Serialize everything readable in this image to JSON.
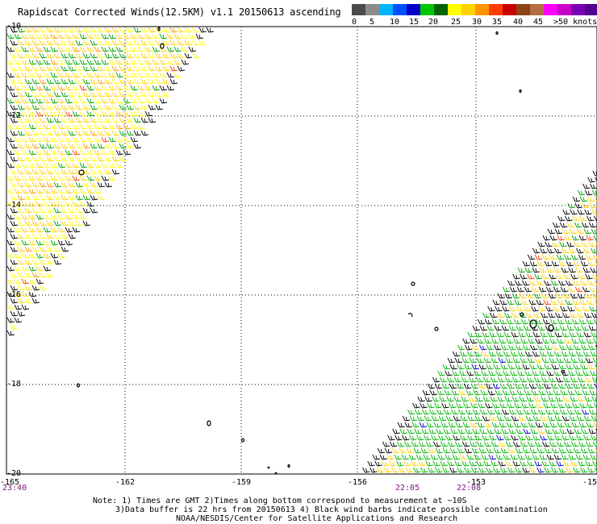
{
  "title": "Rapidscat Corrected Winds(12.5KM) v1.1 20150613 ascending",
  "colorbar": {
    "colors": [
      "#4a4a4a",
      "#8c8c8c",
      "#00b4ff",
      "#0050ff",
      "#0000c8",
      "#00c800",
      "#006400",
      "#ffff00",
      "#ffd200",
      "#ff9600",
      "#ff3c00",
      "#c80000",
      "#8b4513",
      "#b46e46",
      "#ff00ff",
      "#c800c8",
      "#7800b4",
      "#50008c"
    ],
    "labels": [
      "0",
      "5",
      "10",
      "15",
      "20",
      "25",
      "30",
      "35",
      "40",
      "45",
      ">50 knots"
    ]
  },
  "axes": {
    "lat_labels": [
      "-10",
      "-12",
      "-14",
      "-16",
      "-18",
      "-20"
    ],
    "lon_labels": [
      "-165",
      "-162",
      "-159",
      "-156",
      "-153",
      "-15"
    ],
    "lat_range": [
      -20,
      -10
    ],
    "lon_range": [
      -165,
      -150
    ]
  },
  "times": [
    "23:40",
    "22:05",
    "22:08"
  ],
  "notes": [
    "Note: 1) Times are GMT 2)Times along bottom correspond to measurement at ~10S",
    "3)Data buffer is 22 hrs from 20150613 4) Black wind barbs indicate possible contamination",
    "NOAA/NESDIS/Center for Satellite Applications and Research"
  ]
}
